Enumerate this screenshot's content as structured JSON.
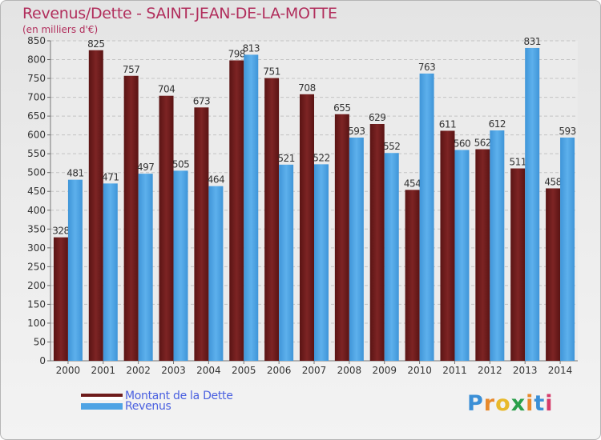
{
  "header": {
    "title": "Revenus/Dette - SAINT-JEAN-DE-LA-MOTTE",
    "subtitle": "(en milliers d'€)"
  },
  "chart_data": {
    "type": "bar",
    "title": "Revenus/Dette - SAINT-JEAN-DE-LA-MOTTE",
    "ylabel": "(en milliers d'€)",
    "xlabel": "",
    "categories": [
      "2000",
      "2001",
      "2002",
      "2003",
      "2004",
      "2005",
      "2006",
      "2007",
      "2008",
      "2009",
      "2010",
      "2011",
      "2012",
      "2013",
      "2014"
    ],
    "series": [
      {
        "name": "Montant de la Dette",
        "color": "#6e1c1c",
        "values": [
          328,
          825,
          757,
          704,
          673,
          798,
          751,
          708,
          655,
          629,
          454,
          611,
          562,
          511,
          458
        ]
      },
      {
        "name": "Revenus",
        "color": "#4ea3e4",
        "values": [
          481,
          471,
          497,
          505,
          464,
          813,
          521,
          522,
          593,
          552,
          763,
          560,
          612,
          831,
          593
        ]
      }
    ],
    "ylim": [
      0,
      850
    ],
    "yticks": [
      0,
      50,
      100,
      150,
      200,
      250,
      300,
      350,
      400,
      450,
      500,
      550,
      600,
      650,
      700,
      750,
      800,
      850
    ],
    "grid": true,
    "legend_position": "bottom-left"
  },
  "legend": {
    "items": [
      {
        "label": "Montant de la Dette",
        "color": "#6e1c1c"
      },
      {
        "label": "Revenus",
        "color": "#4ea3e4"
      }
    ]
  },
  "logo": {
    "letters": [
      "P",
      "r",
      "o",
      "x",
      "i",
      "t",
      "i"
    ],
    "colors": [
      "#3b8fd6",
      "#e8892b",
      "#e8b92b",
      "#2a9f4a",
      "#e8892b",
      "#3b8fd6",
      "#d63b6a"
    ]
  }
}
